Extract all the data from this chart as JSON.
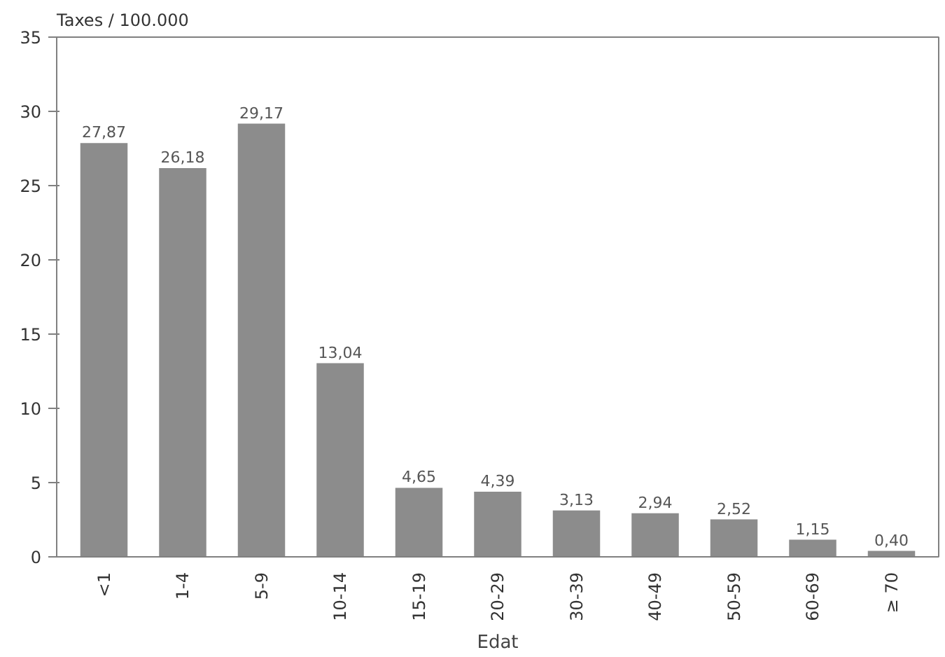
{
  "chart_data": {
    "type": "bar",
    "ylabel": "Taxes / 100.000",
    "xlabel": "Edat",
    "categories": [
      "<1",
      "1-4",
      "5-9",
      "10-14",
      "15-19",
      "20-29",
      "30-39",
      "40-49",
      "50-59",
      "60-69",
      "≥ 70"
    ],
    "values": [
      27.87,
      26.18,
      29.17,
      13.04,
      4.65,
      4.39,
      3.13,
      2.94,
      2.52,
      1.15,
      0.4
    ],
    "value_labels": [
      "27,87",
      "26,18",
      "29,17",
      "13,04",
      "4,65",
      "4,39",
      "3,13",
      "2,94",
      "2,52",
      "1,15",
      "0,40"
    ],
    "color": "#8c8c8c",
    "ylim": [
      0,
      35
    ],
    "yticks": [
      0,
      5,
      10,
      15,
      20,
      25,
      30,
      35
    ],
    "grid": false
  }
}
